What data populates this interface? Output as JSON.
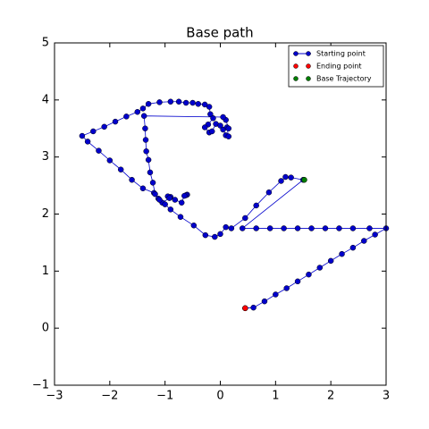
{
  "chart_data": {
    "type": "line",
    "title": "Base path",
    "xlim": [
      -3,
      3
    ],
    "ylim": [
      -1,
      5
    ],
    "xticks": [
      {
        "value": -3,
        "label": "−3"
      },
      {
        "value": -2,
        "label": "−2"
      },
      {
        "value": -1,
        "label": "−1"
      },
      0,
      1,
      2,
      3
    ],
    "yticks": [
      {
        "value": -1,
        "label": "−1"
      },
      0,
      1,
      2,
      3,
      4,
      5
    ],
    "legend": "upper right",
    "series": [
      {
        "name": "Starting point",
        "color": "#0000cc",
        "line": true,
        "x": [
          -0.6,
          -0.62,
          -0.65,
          -0.7,
          -0.82,
          -0.9,
          -0.95,
          -0.92,
          -1.05,
          -1.12,
          -1.2,
          -1.4,
          -1.6,
          -1.8,
          -2.0,
          -2.2,
          -2.4,
          -2.5,
          -2.3,
          -2.1,
          -1.9,
          -1.7,
          -1.5,
          -1.4,
          -1.3,
          -1.1,
          -0.9,
          -0.75,
          -0.62,
          -0.5,
          -0.4,
          -0.28,
          -0.2,
          -0.18,
          -0.13,
          -0.22,
          -0.28,
          -0.2,
          -0.15,
          -0.08,
          0.0,
          0.05,
          0.1,
          0.15,
          0.12,
          0.15,
          0.1,
          0.05,
          -1.38,
          -1.36,
          -1.35,
          -1.34,
          -1.3,
          -1.27,
          -1.22,
          -1.18,
          -1.1,
          -1.0,
          -0.9,
          -0.72,
          -0.48,
          -0.27,
          -0.1,
          0.0,
          0.1,
          0.2,
          0.45,
          0.65,
          0.88,
          1.1,
          1.18,
          1.28,
          1.5,
          0.4,
          0.65,
          0.9,
          1.15,
          1.4,
          1.65,
          1.9,
          2.15,
          2.4,
          2.7,
          3.0,
          2.8,
          2.6,
          2.4,
          2.2,
          2.0,
          1.8,
          1.6,
          1.4,
          1.2,
          1.0,
          0.8,
          0.6,
          0.45
        ],
        "values": [
          2.34,
          2.33,
          2.32,
          2.2,
          2.25,
          2.3,
          2.31,
          2.28,
          2.2,
          2.27,
          2.37,
          2.45,
          2.6,
          2.78,
          2.94,
          3.11,
          3.27,
          3.37,
          3.45,
          3.53,
          3.62,
          3.71,
          3.79,
          3.85,
          3.93,
          3.96,
          3.97,
          3.97,
          3.95,
          3.95,
          3.93,
          3.92,
          3.88,
          3.75,
          3.68,
          3.57,
          3.52,
          3.43,
          3.45,
          3.58,
          3.55,
          3.48,
          3.38,
          3.36,
          3.52,
          3.5,
          3.65,
          3.7,
          3.72,
          3.5,
          3.3,
          3.1,
          2.95,
          2.73,
          2.55,
          2.35,
          2.25,
          2.17,
          2.08,
          1.95,
          1.8,
          1.63,
          1.6,
          1.65,
          1.77,
          1.75,
          1.93,
          2.15,
          2.38,
          2.58,
          2.65,
          2.64,
          2.6,
          1.75,
          1.75,
          1.75,
          1.75,
          1.75,
          1.75,
          1.75,
          1.75,
          1.75,
          1.75,
          1.75,
          1.64,
          1.53,
          1.41,
          1.3,
          1.18,
          1.06,
          0.94,
          0.82,
          0.7,
          0.59,
          0.47,
          0.36,
          0.35
        ]
      },
      {
        "name": "Ending point",
        "color": "#ff0000",
        "line": false,
        "x": [
          0.45
        ],
        "values": [
          0.35
        ]
      },
      {
        "name": "Base Trajectory",
        "color": "#007f00",
        "line": false,
        "x": [
          1.52
        ],
        "values": [
          2.6
        ]
      }
    ]
  }
}
